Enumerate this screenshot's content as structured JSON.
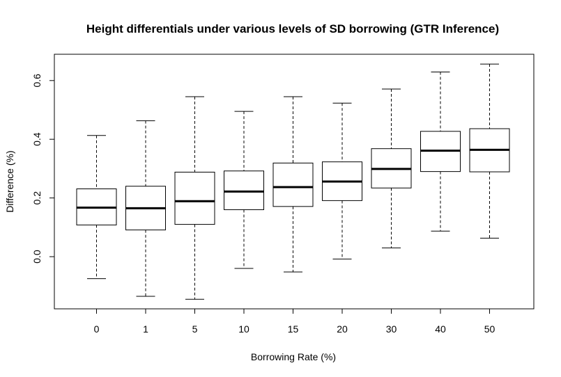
{
  "chart_data": {
    "type": "boxplot",
    "title": "Height differentials under various levels of SD borrowing (GTR Inference)",
    "xlabel": "Borrowing Rate (%)",
    "ylabel": "Difference (%)",
    "ylim": [
      -0.18,
      0.69
    ],
    "yticks": [
      "0.0",
      "0.2",
      "0.4",
      "0.6"
    ],
    "grid": false,
    "categories": [
      "0",
      "1",
      "5",
      "10",
      "15",
      "20",
      "30",
      "40",
      "50"
    ],
    "boxes": [
      {
        "min": -0.075,
        "q1": 0.108,
        "median": 0.167,
        "q3": 0.231,
        "max": 0.413
      },
      {
        "min": -0.135,
        "q1": 0.091,
        "median": 0.165,
        "q3": 0.24,
        "max": 0.463
      },
      {
        "min": -0.145,
        "q1": 0.11,
        "median": 0.189,
        "q3": 0.288,
        "max": 0.545
      },
      {
        "min": -0.04,
        "q1": 0.16,
        "median": 0.222,
        "q3": 0.292,
        "max": 0.495
      },
      {
        "min": -0.052,
        "q1": 0.171,
        "median": 0.237,
        "q3": 0.319,
        "max": 0.545
      },
      {
        "min": -0.008,
        "q1": 0.191,
        "median": 0.256,
        "q3": 0.323,
        "max": 0.523
      },
      {
        "min": 0.03,
        "q1": 0.234,
        "median": 0.299,
        "q3": 0.368,
        "max": 0.571
      },
      {
        "min": 0.087,
        "q1": 0.29,
        "median": 0.361,
        "q3": 0.427,
        "max": 0.629
      },
      {
        "min": 0.063,
        "q1": 0.289,
        "median": 0.364,
        "q3": 0.436,
        "max": 0.656
      }
    ]
  }
}
